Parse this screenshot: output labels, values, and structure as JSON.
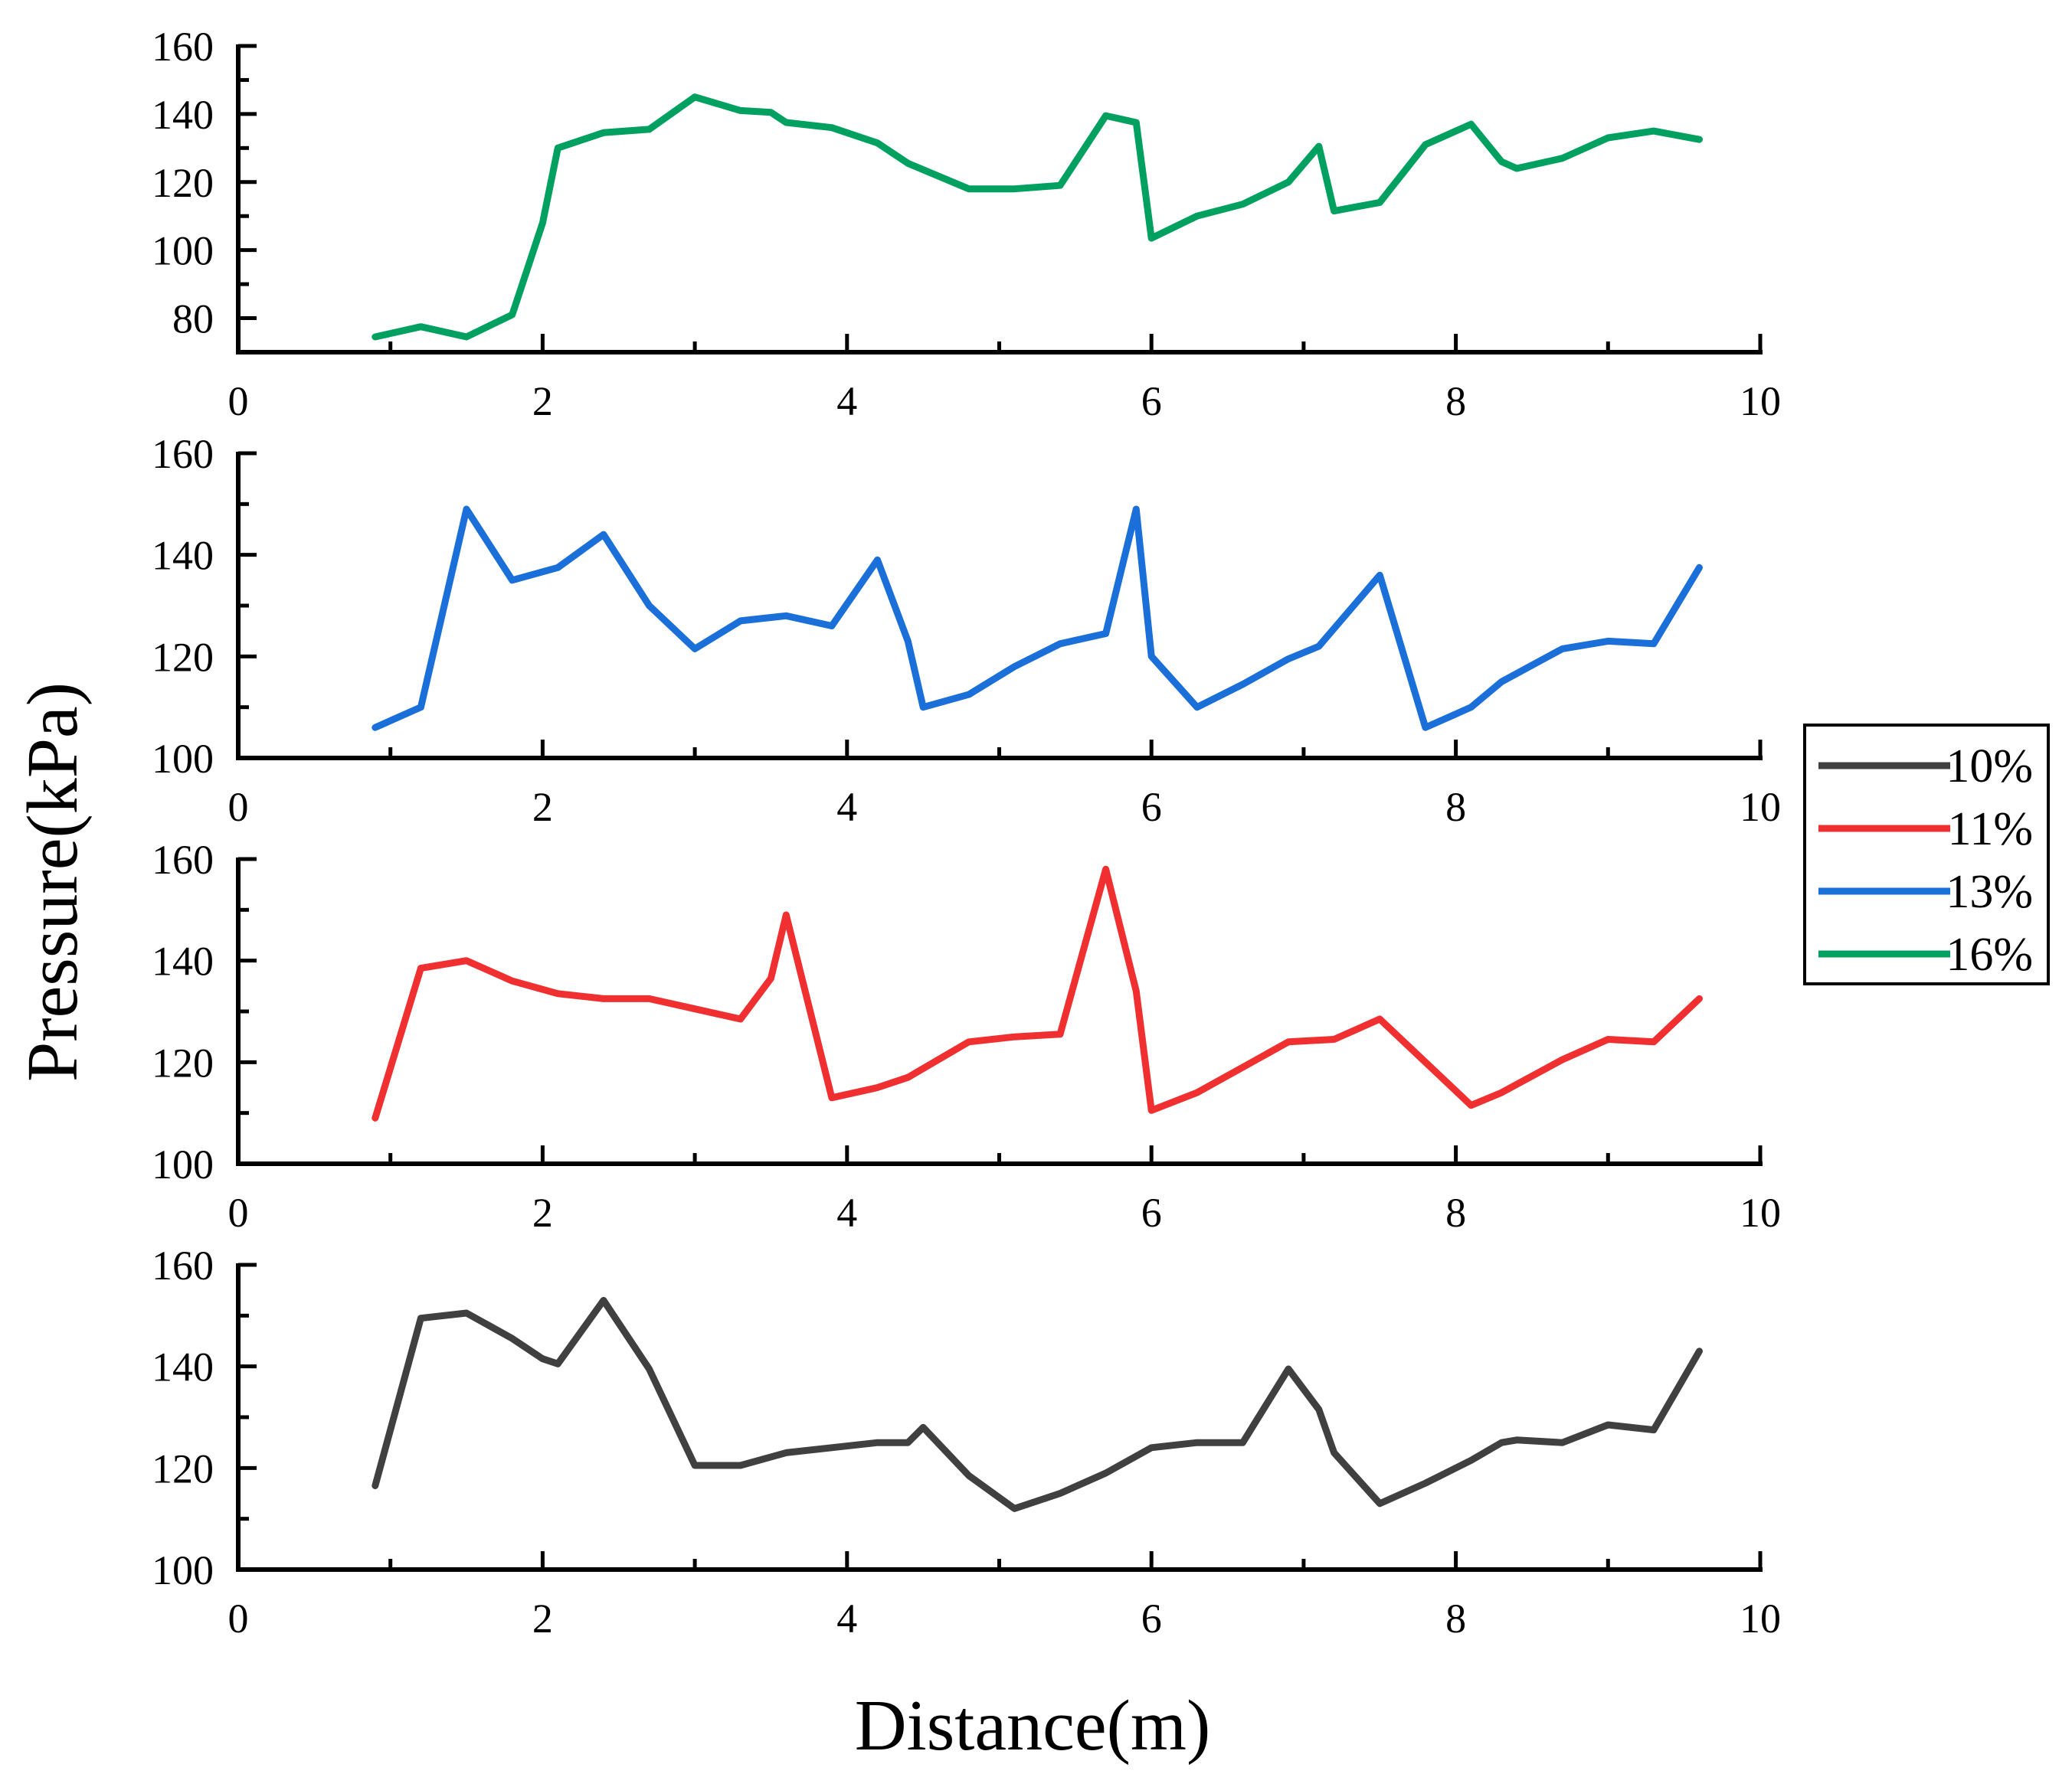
{
  "chart_data": {
    "type": "line",
    "ylabel": "Pressure(kPa)",
    "xlabel": "Distance(m)",
    "legend": {
      "placement": "right",
      "entries": [
        {
          "label": "10%",
          "color": "#404040"
        },
        {
          "label": "11%",
          "color": "#f03030"
        },
        {
          "label": "13%",
          "color": "#1a6fd8"
        },
        {
          "label": "16%",
          "color": "#00a060"
        }
      ]
    },
    "panels": [
      {
        "series": "16%",
        "color": "#00a060",
        "xlim": [
          0,
          10
        ],
        "ylim": [
          70,
          160
        ],
        "xticks": [
          0,
          2,
          4,
          6,
          8,
          10
        ],
        "xtick_labels": [
          "0",
          "2",
          "4",
          "6",
          "8",
          "10"
        ],
        "yticks": [
          80,
          100,
          120,
          140,
          160
        ],
        "ytick_labels": [
          "80",
          "100",
          "120",
          "140",
          "160"
        ],
        "x": [
          0.9,
          1.2,
          1.5,
          1.8,
          2.0,
          2.1,
          2.4,
          2.7,
          3.0,
          3.3,
          3.5,
          3.6,
          3.9,
          4.2,
          4.4,
          4.8,
          5.1,
          5.4,
          5.7,
          5.9,
          6.0,
          6.3,
          6.6,
          6.9,
          7.1,
          7.2,
          7.5,
          7.8,
          8.1,
          8.3,
          8.4,
          8.7,
          9.0,
          9.3,
          9.6
        ],
        "y": [
          74.5,
          77.5,
          74.5,
          81,
          108,
          130,
          134.5,
          135.5,
          145,
          141,
          140.5,
          137.5,
          136,
          131.5,
          125.5,
          118,
          118,
          119,
          139.5,
          137.5,
          103.5,
          110,
          113.5,
          120,
          130.5,
          111.5,
          114,
          131,
          137,
          126,
          124,
          127,
          133,
          135,
          132.5
        ]
      },
      {
        "series": "13%",
        "color": "#1a6fd8",
        "xlim": [
          0,
          10
        ],
        "ylim": [
          100,
          160
        ],
        "xticks": [
          0,
          2,
          4,
          6,
          8,
          10
        ],
        "xtick_labels": [
          "0",
          "2",
          "4",
          "6",
          "8",
          "10"
        ],
        "yticks": [
          100,
          120,
          140,
          160
        ],
        "ytick_labels": [
          "100",
          "120",
          "140",
          "160"
        ],
        "x": [
          0.9,
          1.2,
          1.5,
          1.8,
          2.1,
          2.4,
          2.7,
          3.0,
          3.3,
          3.6,
          3.9,
          4.2,
          4.4,
          4.5,
          4.8,
          5.1,
          5.4,
          5.7,
          5.9,
          6.0,
          6.3,
          6.6,
          6.9,
          7.1,
          7.5,
          7.8,
          8.1,
          8.3,
          8.7,
          9.0,
          9.3,
          9.6
        ],
        "y": [
          106,
          110,
          149,
          135,
          137.5,
          144,
          130,
          121.5,
          127,
          128,
          126,
          139,
          123,
          110,
          112.5,
          118,
          122.5,
          124.5,
          149,
          120,
          110,
          114.5,
          119.5,
          122,
          136,
          106,
          110,
          115,
          121.5,
          123,
          122.5,
          137.5
        ]
      },
      {
        "series": "11%",
        "color": "#f03030",
        "xlim": [
          0,
          10
        ],
        "ylim": [
          100,
          160
        ],
        "xticks": [
          0,
          2,
          4,
          6,
          8,
          10
        ],
        "xtick_labels": [
          "0",
          "2",
          "4",
          "6",
          "8",
          "10"
        ],
        "yticks": [
          100,
          120,
          140,
          160
        ],
        "ytick_labels": [
          "100",
          "120",
          "140",
          "160"
        ],
        "x": [
          0.9,
          1.2,
          1.5,
          1.8,
          2.1,
          2.4,
          2.7,
          3.0,
          3.3,
          3.5,
          3.6,
          3.9,
          4.2,
          4.4,
          4.8,
          5.1,
          5.4,
          5.7,
          5.9,
          6.0,
          6.3,
          6.6,
          6.9,
          7.2,
          7.5,
          7.8,
          8.1,
          8.3,
          8.7,
          9.0,
          9.3,
          9.6
        ],
        "y": [
          109,
          138.5,
          140,
          136,
          133.5,
          132.5,
          132.5,
          130.5,
          128.5,
          136.5,
          149,
          113,
          115,
          117,
          124,
          125,
          125.5,
          158,
          134,
          110.5,
          114,
          119,
          124,
          124.5,
          128.5,
          120,
          111.5,
          114,
          120.5,
          124.5,
          124,
          132.5
        ]
      },
      {
        "series": "10%",
        "color": "#404040",
        "xlim": [
          0,
          10
        ],
        "ylim": [
          100,
          160
        ],
        "xticks": [
          0,
          2,
          4,
          6,
          8,
          10
        ],
        "xtick_labels": [
          "0",
          "2",
          "4",
          "6",
          "8",
          "10"
        ],
        "yticks": [
          100,
          120,
          140,
          160
        ],
        "ytick_labels": [
          "100",
          "120",
          "140",
          "160"
        ],
        "x": [
          0.9,
          1.2,
          1.5,
          1.8,
          2.0,
          2.1,
          2.4,
          2.7,
          3.0,
          3.3,
          3.6,
          3.9,
          4.2,
          4.4,
          4.5,
          4.8,
          5.1,
          5.4,
          5.7,
          6.0,
          6.3,
          6.6,
          6.9,
          7.1,
          7.2,
          7.5,
          7.8,
          8.1,
          8.3,
          8.4,
          8.7,
          9.0,
          9.3,
          9.6
        ],
        "y": [
          116.5,
          149.5,
          150.5,
          145.5,
          141.5,
          140.5,
          153,
          139.5,
          120.5,
          120.5,
          123,
          124,
          125,
          125,
          128,
          118.5,
          112,
          115,
          119,
          124,
          125,
          125,
          139.5,
          131.5,
          123,
          113,
          117,
          121.5,
          125,
          125.5,
          125,
          128.5,
          127.5,
          143
        ]
      }
    ]
  }
}
